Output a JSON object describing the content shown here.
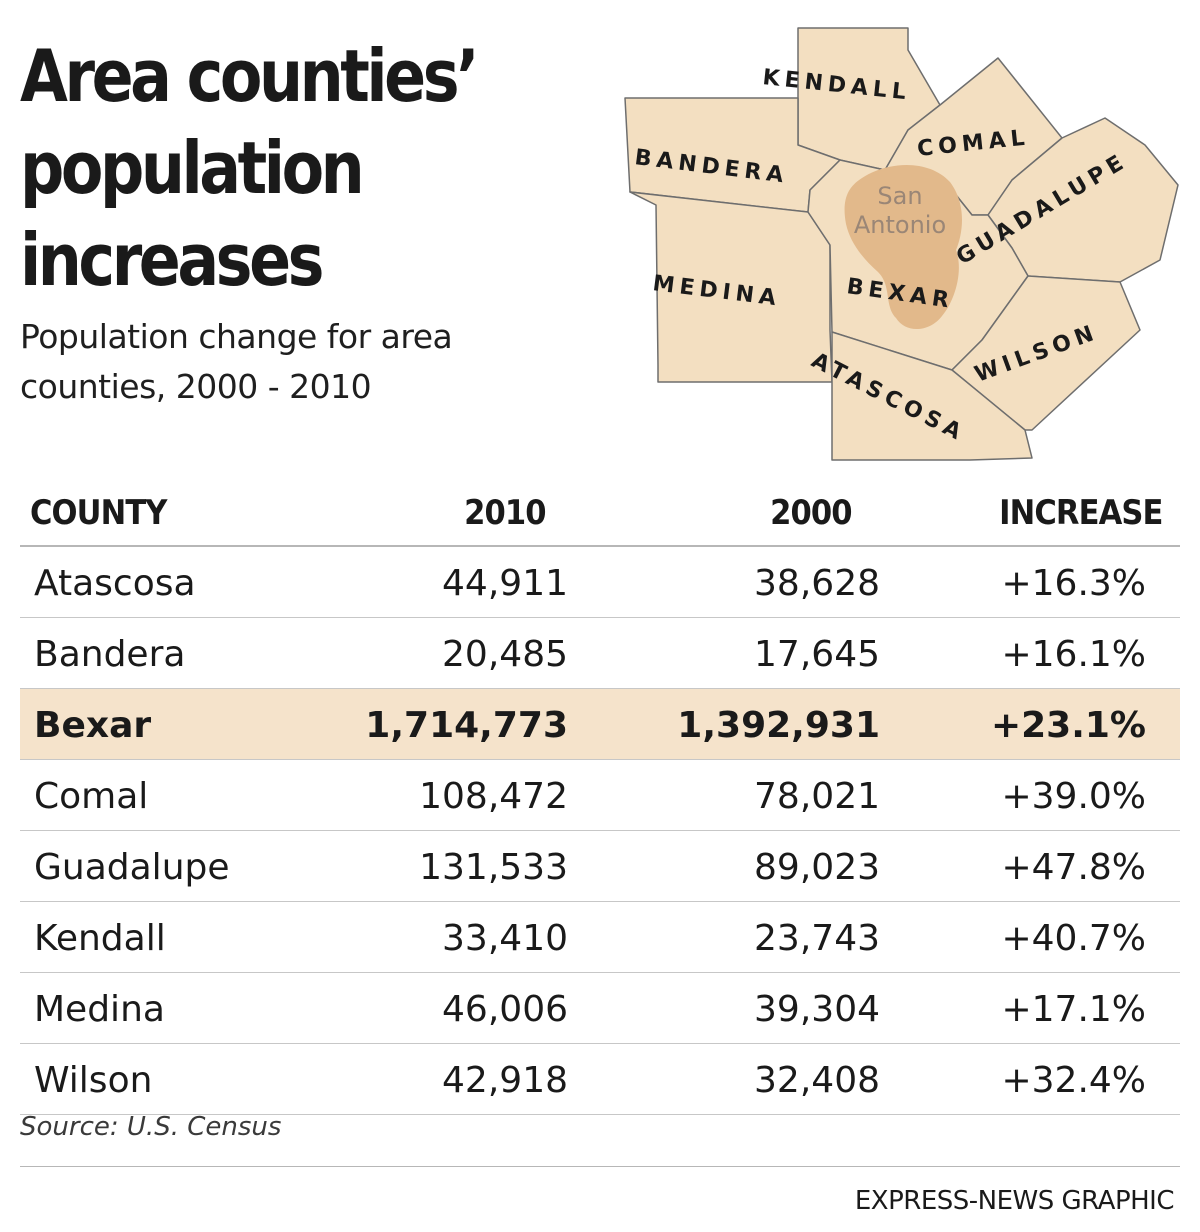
{
  "title_lines": [
    "Area counties’",
    "population",
    "increases"
  ],
  "subtitle": "Population change for area counties, 2000 - 2010",
  "map": {
    "county_labels": [
      "KENDALL",
      "COMAL",
      "BANDERA",
      "GUADALUPE",
      "MEDINA",
      "BEXAR",
      "WILSON",
      "ATASCOSA"
    ],
    "city_label_line1": "San",
    "city_label_line2": "Antonio",
    "colors": {
      "county_fill": "#f3dfc1",
      "county_stroke": "#6e6e6e",
      "city_fill": "#e2b98b"
    }
  },
  "chart_data": {
    "type": "table",
    "columns": [
      "COUNTY",
      "2010",
      "2000",
      "INCREASE"
    ],
    "rows": [
      [
        "Atascosa",
        "44,911",
        "38,628",
        "+16.3%"
      ],
      [
        "Bandera",
        "20,485",
        "17,645",
        "+16.1%"
      ],
      [
        "Bexar",
        "1,714,773",
        "1,392,931",
        "+23.1%"
      ],
      [
        "Comal",
        "108,472",
        "78,021",
        "+39.0%"
      ],
      [
        "Guadalupe",
        "131,533",
        "89,023",
        "+47.8%"
      ],
      [
        "Kendall",
        "33,410",
        "23,743",
        "+40.7%"
      ],
      [
        "Medina",
        "46,006",
        "39,304",
        "+17.1%"
      ],
      [
        "Wilson",
        "42,918",
        "32,408",
        "+32.4%"
      ]
    ],
    "highlighted_row": "Bexar",
    "highlight_color": "#f5e3cb"
  },
  "source": "Source: U.S. Census",
  "credit": "EXPRESS-NEWS GRAPHIC"
}
